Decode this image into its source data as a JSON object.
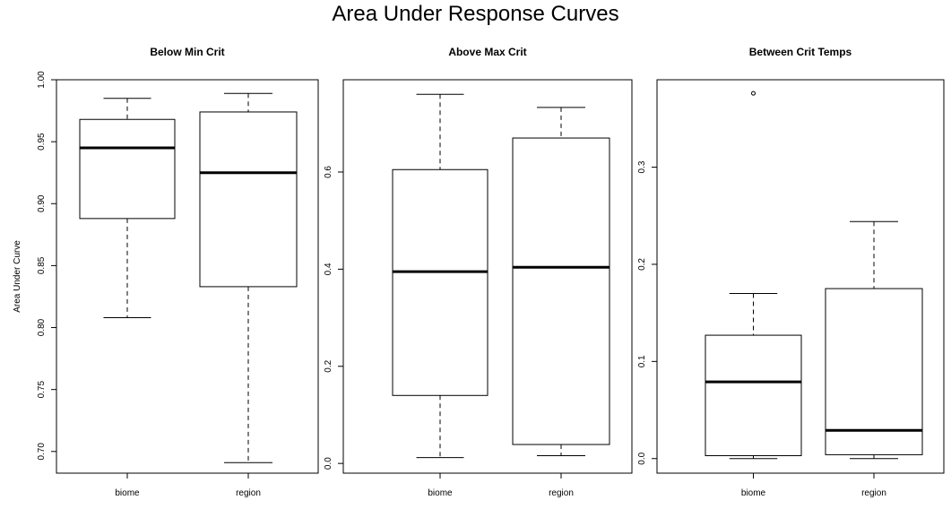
{
  "figure": {
    "title": "Area Under Response Curves"
  },
  "chart_data": [
    {
      "type": "box",
      "title": "Below Min Crit",
      "ylabel": "Area Under Curve",
      "ylim": [
        0.6825,
        1.0
      ],
      "yticks": [
        0.7,
        0.75,
        0.8,
        0.85,
        0.9,
        0.95,
        1.0
      ],
      "ytick_labels": [
        "0.70",
        "0.75",
        "0.80",
        "0.85",
        "0.90",
        "0.95",
        "1.00"
      ],
      "categories": [
        "biome",
        "region"
      ],
      "boxes": [
        {
          "name": "biome",
          "whisker_low": 0.808,
          "q1": 0.888,
          "median": 0.945,
          "q3": 0.968,
          "whisker_high": 0.985,
          "outliers": []
        },
        {
          "name": "region",
          "whisker_low": 0.691,
          "q1": 0.833,
          "median": 0.925,
          "q3": 0.974,
          "whisker_high": 0.989,
          "outliers": []
        }
      ]
    },
    {
      "type": "box",
      "title": "Above Max Crit",
      "ylabel": "",
      "ylim": [
        -0.02,
        0.79
      ],
      "yticks": [
        0.0,
        0.2,
        0.4,
        0.6
      ],
      "ytick_labels": [
        "0.0",
        "0.2",
        "0.4",
        "0.6"
      ],
      "categories": [
        "biome",
        "region"
      ],
      "boxes": [
        {
          "name": "biome",
          "whisker_low": 0.012,
          "q1": 0.14,
          "median": 0.395,
          "q3": 0.605,
          "whisker_high": 0.76,
          "outliers": []
        },
        {
          "name": "region",
          "whisker_low": 0.016,
          "q1": 0.039,
          "median": 0.404,
          "q3": 0.67,
          "whisker_high": 0.733,
          "outliers": []
        }
      ]
    },
    {
      "type": "box",
      "title": "Between Crit Temps",
      "ylabel": "",
      "ylim": [
        -0.015,
        0.39
      ],
      "yticks": [
        0.0,
        0.1,
        0.2,
        0.3
      ],
      "ytick_labels": [
        "0.0",
        "0.1",
        "0.2",
        "0.3"
      ],
      "categories": [
        "biome",
        "region"
      ],
      "boxes": [
        {
          "name": "biome",
          "whisker_low": 0.0,
          "q1": 0.003,
          "median": 0.079,
          "q3": 0.127,
          "whisker_high": 0.17,
          "outliers": [
            0.376
          ]
        },
        {
          "name": "region",
          "whisker_low": 0.0,
          "q1": 0.004,
          "median": 0.029,
          "q3": 0.175,
          "whisker_high": 0.244,
          "outliers": []
        }
      ]
    }
  ]
}
